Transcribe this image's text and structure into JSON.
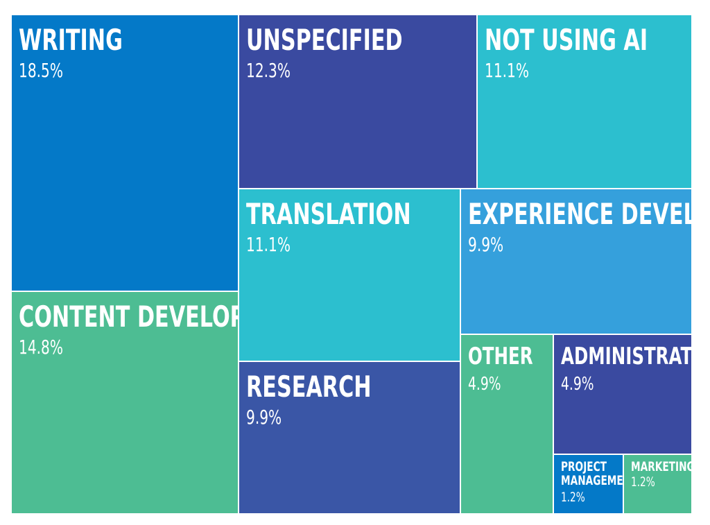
{
  "chart_data": {
    "type": "treemap",
    "title": "",
    "items": [
      {
        "label": "WRITING",
        "value": 18.5,
        "display": "18.5%",
        "color": "#0479c8"
      },
      {
        "label": "UNSPECIFIED",
        "value": 12.3,
        "display": "12.3%",
        "color": "#3a4aa0"
      },
      {
        "label": "NOT USING AI",
        "value": 11.1,
        "display": "11.1%",
        "color": "#2cbfcf"
      },
      {
        "label": "CONTENT DEVELOPMENT",
        "value": 14.8,
        "display": "14.8%",
        "color": "#4dbd93"
      },
      {
        "label": "TRANSLATION",
        "value": 11.1,
        "display": "11.1%",
        "color": "#2cbfcf"
      },
      {
        "label": "EXPERIENCE DEVELOPMENT",
        "value": 9.9,
        "display": "9.9%",
        "color": "#35a0dc"
      },
      {
        "label": "RESEARCH",
        "value": 9.9,
        "display": "9.9%",
        "color": "#3a56a6"
      },
      {
        "label": "OTHER",
        "value": 4.9,
        "display": "4.9%",
        "color": "#4dbd93"
      },
      {
        "label": "ADMINISTRATIVE",
        "value": 4.9,
        "display": "4.9%",
        "color": "#3a4aa0"
      },
      {
        "label": "PROJECT MANAGEMENT",
        "value": 1.2,
        "display": "1.2%",
        "color": "#0479c8"
      },
      {
        "label": "MARKETING",
        "value": 1.2,
        "display": "1.2%",
        "color": "#4dbd93"
      }
    ]
  }
}
